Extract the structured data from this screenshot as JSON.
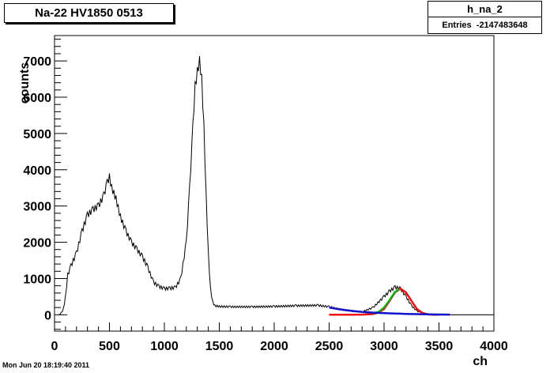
{
  "title": "Na-22 HV1850 0513",
  "stats": {
    "name": "h_na_2",
    "entries_label": "Entries",
    "entries_value": "-2147483648"
  },
  "datestamp": "Mon Jun 20 18:19:40 2011",
  "colors": {
    "histogram": "#000000",
    "fit_red": "#ee1111",
    "fit_green": "#11aa11",
    "fit_blue": "#1111cc",
    "frame": "#000000"
  },
  "chart_data": {
    "type": "line",
    "title": "Na-22 HV1850 0513",
    "xlabel": "ch",
    "ylabel": "counts",
    "xlim": [
      0,
      4000
    ],
    "ylim": [
      -450,
      7700
    ],
    "x_ticks": [
      0,
      500,
      1000,
      1500,
      2000,
      2500,
      3000,
      3500,
      4000
    ],
    "y_ticks": [
      0,
      1000,
      2000,
      3000,
      4000,
      5000,
      6000,
      7000
    ],
    "grid": false,
    "series": [
      {
        "style": "histogram",
        "x": [
          40,
          60,
          80,
          100,
          120,
          150,
          200,
          250,
          300,
          350,
          400,
          450,
          480,
          500,
          520,
          560,
          600,
          650,
          700,
          750,
          800,
          850,
          900,
          950,
          1000,
          1050,
          1100,
          1150,
          1200,
          1230,
          1260,
          1280,
          1300,
          1320,
          1340,
          1360,
          1380,
          1400,
          1420,
          1440,
          1460,
          1500,
          1600,
          1800,
          2000,
          2200,
          2400,
          2500,
          2600,
          2700,
          2800,
          2900,
          3000,
          3050,
          3100,
          3150,
          3200,
          3250,
          3300,
          3400,
          3500,
          3600,
          4000
        ],
        "y": [
          0,
          50,
          150,
          500,
          1100,
          1350,
          1700,
          2300,
          2750,
          2900,
          3000,
          3300,
          3650,
          3800,
          3500,
          3200,
          2700,
          2300,
          2000,
          1800,
          1600,
          1300,
          900,
          780,
          720,
          730,
          750,
          1000,
          2000,
          3500,
          5200,
          6300,
          6700,
          7000,
          6500,
          5200,
          3300,
          1700,
          700,
          350,
          250,
          230,
          220,
          220,
          230,
          250,
          260,
          220,
          150,
          100,
          80,
          200,
          500,
          650,
          760,
          720,
          500,
          250,
          100,
          20,
          5,
          2,
          0
        ]
      },
      {
        "style": "fit",
        "color": "#ee1111",
        "x": [
          2500,
          2700,
          2800,
          2900,
          2950,
          3000,
          3050,
          3100,
          3150,
          3200,
          3250,
          3300,
          3350,
          3400,
          3450,
          3500
        ],
        "y": [
          0,
          0,
          5,
          20,
          60,
          160,
          380,
          620,
          720,
          620,
          380,
          160,
          50,
          10,
          2,
          0
        ]
      },
      {
        "style": "fit",
        "color": "#11aa11",
        "x": [
          2900,
          2950,
          3000,
          3050,
          3100,
          3140
        ],
        "y": [
          40,
          80,
          200,
          400,
          630,
          700
        ]
      },
      {
        "style": "fit",
        "color": "#1111cc",
        "x": [
          2500,
          2600,
          2700,
          2800,
          2900,
          3000,
          3100,
          3200,
          3300,
          3400,
          3500,
          3600
        ],
        "y": [
          200,
          150,
          110,
          80,
          60,
          45,
          35,
          25,
          18,
          12,
          8,
          5
        ]
      }
    ]
  }
}
